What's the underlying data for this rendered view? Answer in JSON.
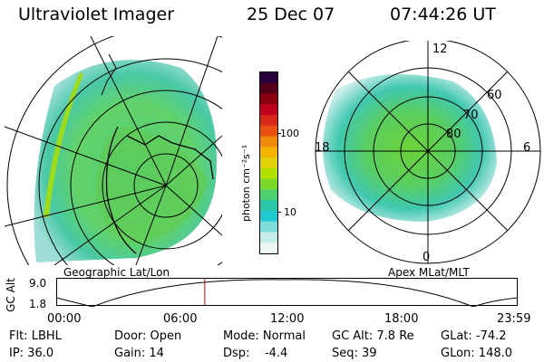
{
  "header": {
    "title": "Ultraviolet Imager",
    "date": "25 Dec 07",
    "time": "07:44:26 UT"
  },
  "geo_panel": {
    "label": "Geographic Lat/Lon"
  },
  "apex_panel": {
    "label": "Apex MLat/MLT",
    "mlt_labels": [
      "12",
      "18",
      "6",
      "0"
    ],
    "mlat_labels": [
      "60",
      "70",
      "80"
    ]
  },
  "colorbar": {
    "label": "photon cm⁻²s⁻¹",
    "ticks": [
      "100",
      "10"
    ],
    "colors": [
      "#2a003a",
      "#55001a",
      "#8a0010",
      "#c0001c",
      "#d8281a",
      "#e85010",
      "#ef8a0a",
      "#f3b300",
      "#e2d20a",
      "#b0e000",
      "#7bd92a",
      "#4fd06e",
      "#28c8a8",
      "#20c8d0",
      "#7cdcd8",
      "#c6ecea",
      "#eef6f6"
    ]
  },
  "timeline": {
    "y_label": "GC Alt",
    "y_top": "9.0",
    "y_bot": "1.8",
    "x_ticks": [
      "00:00",
      "06:00",
      "12:00",
      "18:00",
      "23:59"
    ],
    "marker_time_hours": 7.74
  },
  "info": {
    "flt": "Flt: LBHL",
    "ip": "IP: 36.0",
    "door": "Door: Open",
    "gain": "Gain: 14",
    "mode": "Mode: Normal",
    "dsp": "Dsp:    -4.4",
    "gcalt": "GC Alt: 7.8 Re",
    "seq": "Seq: 39",
    "glat": "GLat: -74.2",
    "glon": "GLon: 148.0"
  }
}
